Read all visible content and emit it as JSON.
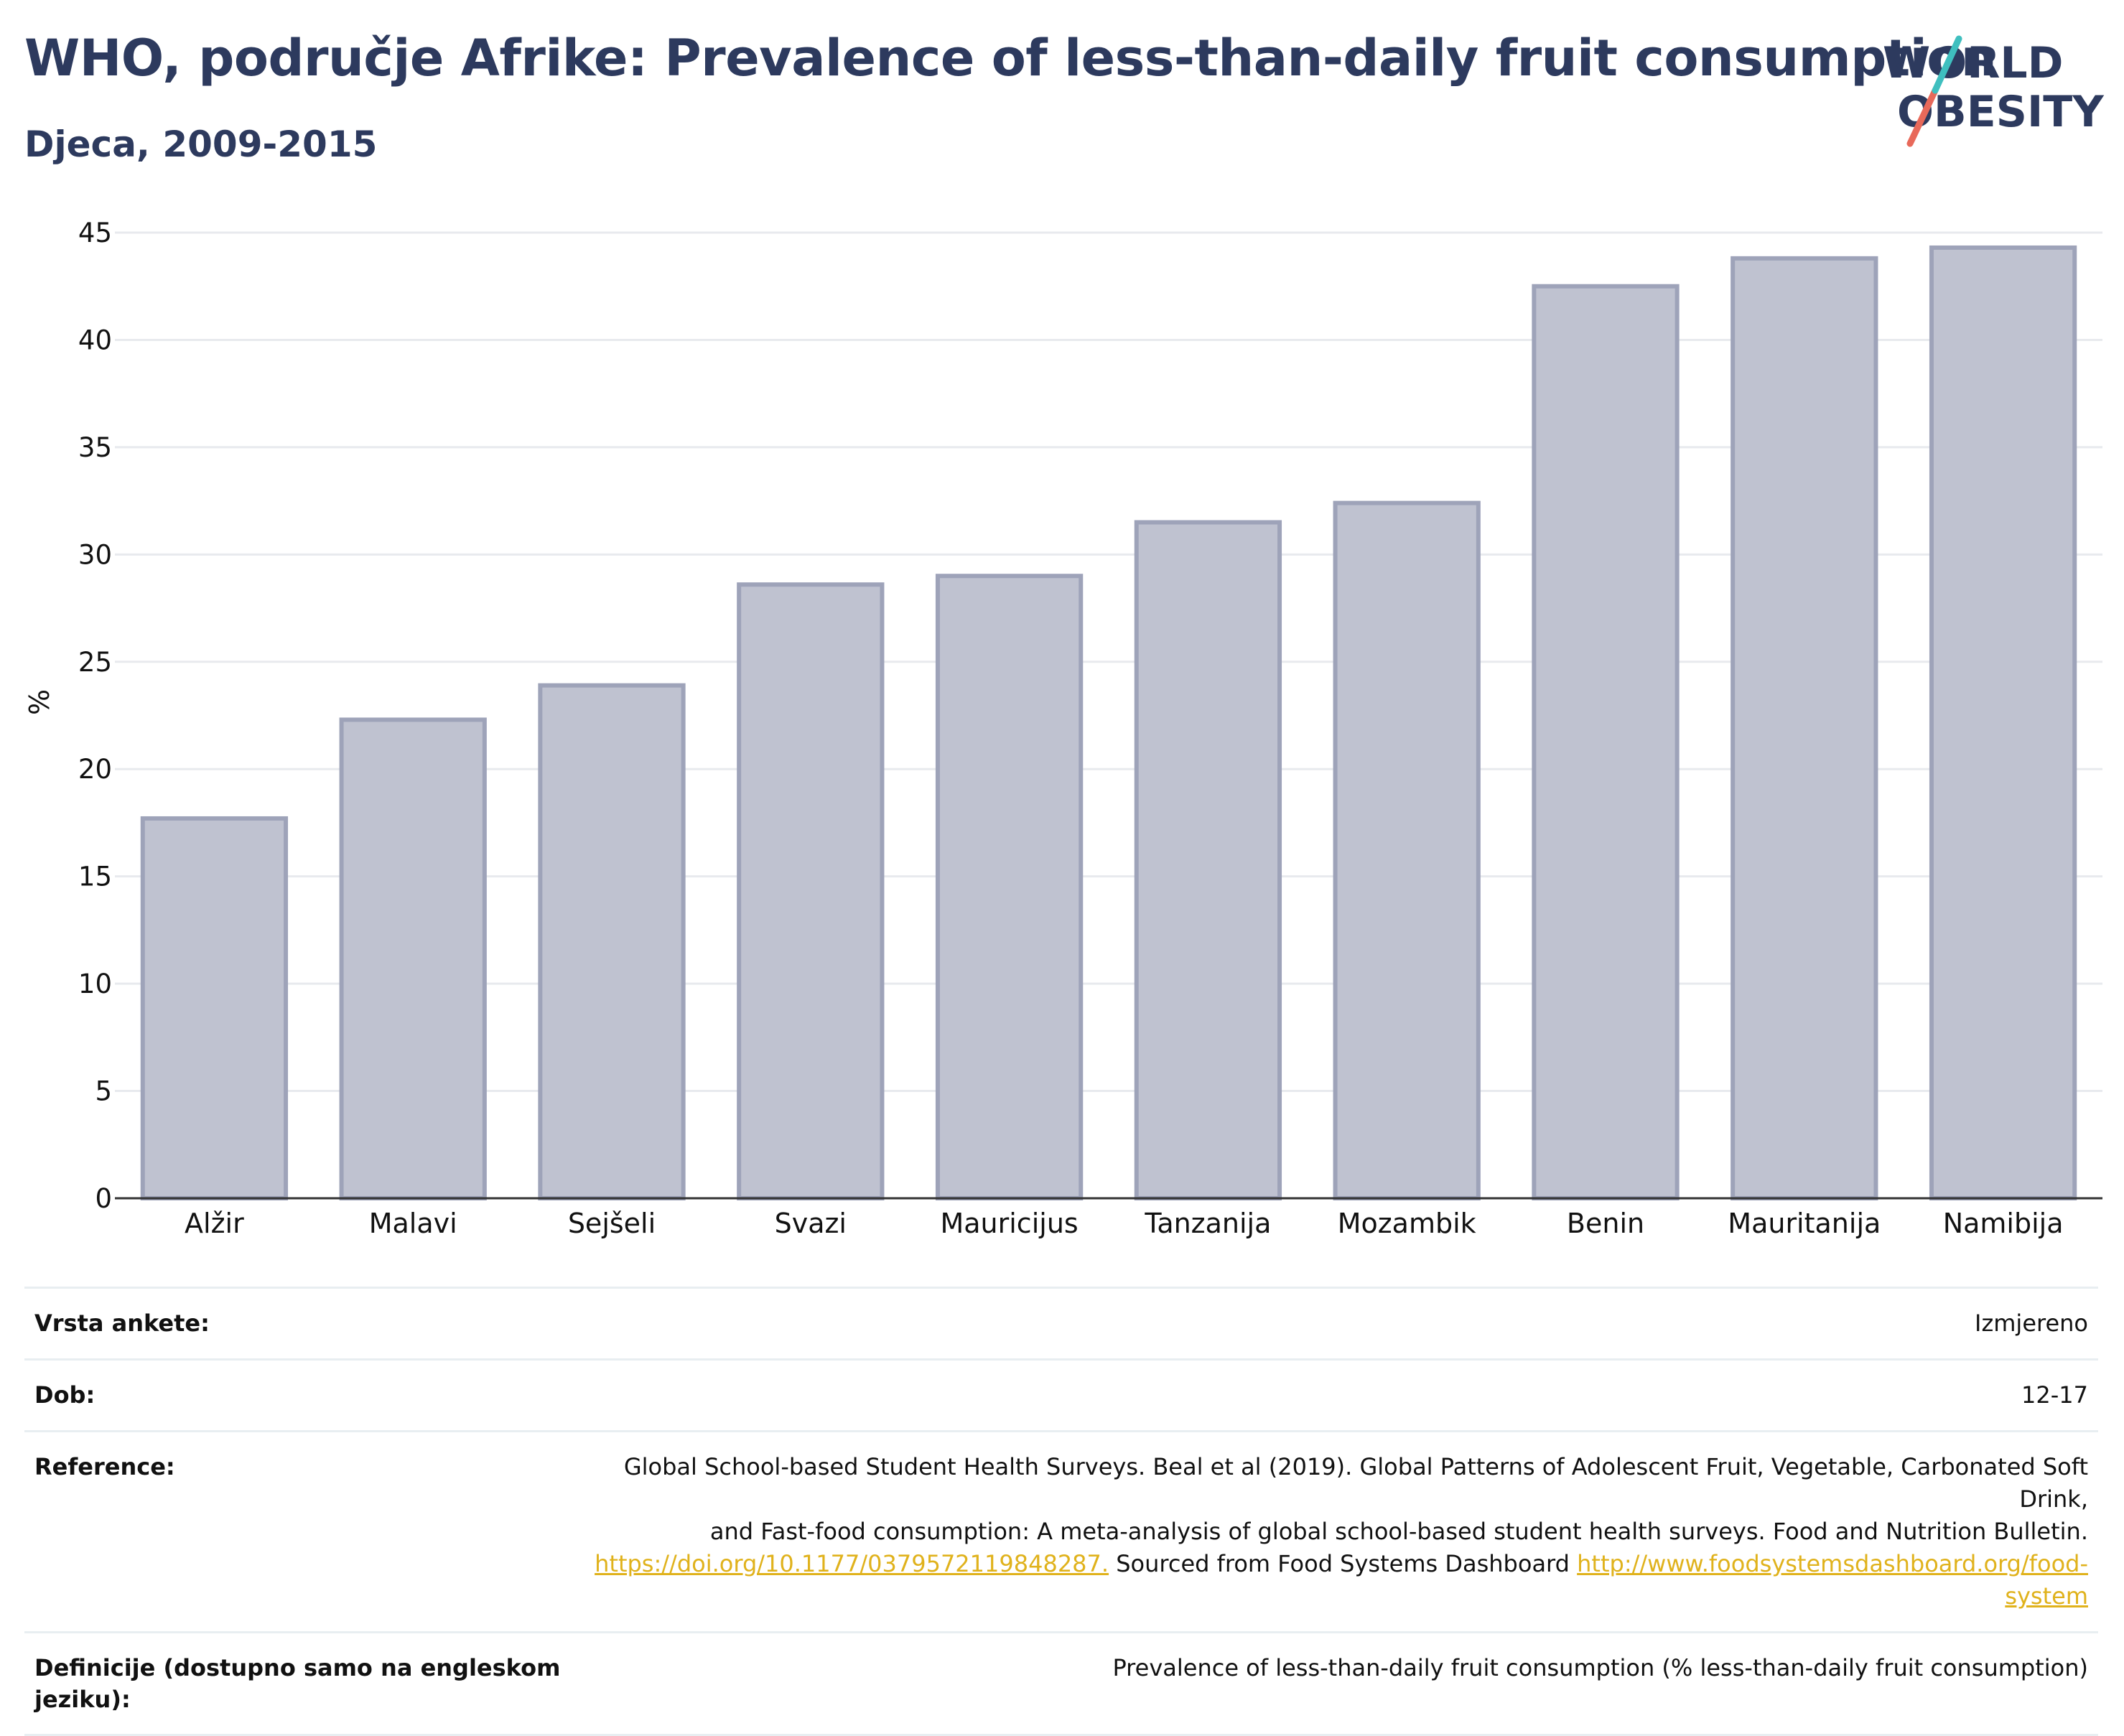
{
  "header": {
    "title": "WHO, područje Afrike: Prevalence of less-than-daily fruit consumption",
    "subtitle": "Djeca, 2009-2015",
    "logo_line1": "WORLD",
    "logo_line2": "OBESITY"
  },
  "colors": {
    "title": "#2d3a5e",
    "bar_fill": "#bfc2d0",
    "bar_stroke": "#9ea3b9",
    "grid": "#e8eaee",
    "logo_teal": "#3fbfbf",
    "logo_coral": "#e8695a",
    "link": "#e0b21c"
  },
  "chart_data": {
    "type": "bar",
    "title": "WHO, područje Afrike: Prevalence of less-than-daily fruit consumption",
    "subtitle": "Djeca, 2009-2015",
    "xlabel": "",
    "ylabel": "%",
    "ylim": [
      0,
      45
    ],
    "yticks": [
      0,
      5,
      10,
      15,
      20,
      25,
      30,
      35,
      40,
      45
    ],
    "grid": true,
    "categories": [
      "Alžir",
      "Malavi",
      "Sejšeli",
      "Svazi",
      "Mauricijus",
      "Tanzanija",
      "Mozambik",
      "Benin",
      "Mauritanija",
      "Namibija"
    ],
    "values": [
      17.7,
      22.3,
      23.9,
      28.6,
      29.0,
      31.5,
      32.4,
      42.5,
      43.8,
      44.3
    ]
  },
  "info": {
    "rows": [
      {
        "label": "Vrsta ankete:",
        "value": "Izmjereno"
      },
      {
        "label": "Dob:",
        "value": "12-17"
      },
      {
        "label": "Reference:",
        "value_line1": "Global School-based Student Health Surveys. Beal et al (2019). Global Patterns of Adolescent Fruit, Vegetable, Carbonated Soft Drink,",
        "value_line2": "and Fast-food consumption: A meta-analysis of global school-based student health surveys. Food and Nutrition Bulletin.",
        "link1": "https://doi.org/10.1177/0379572119848287.",
        "mid_text": " Sourced from Food Systems Dashboard ",
        "link2a": "http://www.foodsystemsdashboard.org/food-",
        "link2b": "system"
      },
      {
        "label": "Definicije (dostupno samo na engleskom jeziku):",
        "value": "Prevalence of less-than-daily fruit consumption (% less-than-daily fruit consumption)"
      }
    ]
  }
}
